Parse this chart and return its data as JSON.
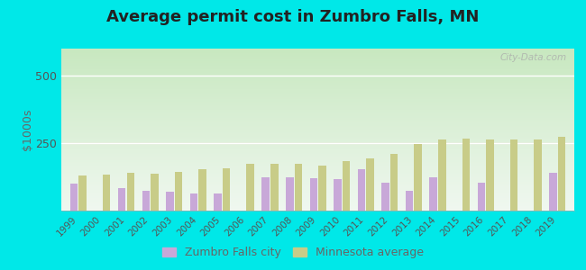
{
  "title": "Average permit cost in Zumbro Falls, MN",
  "ylabel": "$1000s",
  "years": [
    1999,
    2000,
    2001,
    2002,
    2003,
    2004,
    2005,
    2006,
    2007,
    2008,
    2009,
    2010,
    2011,
    2012,
    2013,
    2014,
    2015,
    2016,
    2017,
    2018,
    2019
  ],
  "zumbro_values": [
    100,
    0,
    85,
    75,
    70,
    65,
    65,
    0,
    125,
    125,
    120,
    118,
    155,
    105,
    75,
    125,
    0,
    105,
    0,
    0,
    140
  ],
  "mn_values": [
    130,
    135,
    140,
    138,
    142,
    152,
    157,
    172,
    172,
    172,
    168,
    183,
    192,
    210,
    248,
    262,
    268,
    262,
    262,
    262,
    272
  ],
  "zumbro_color": "#c8a8d8",
  "mn_color": "#c8cc88",
  "bar_width": 0.32,
  "ylim": [
    0,
    600
  ],
  "yticks": [
    0,
    250,
    500
  ],
  "outer_bg": "#00e8e8",
  "plot_bg_top": "#c8e8c0",
  "plot_bg_bottom": "#f0f8f0",
  "grid_color": "#d0e8d0",
  "ref_line_color": "#ffaaaa",
  "legend_zumbro": "Zumbro Falls city",
  "legend_mn": "Minnesota average",
  "title_fontsize": 13,
  "watermark_text": "City-Data.com"
}
